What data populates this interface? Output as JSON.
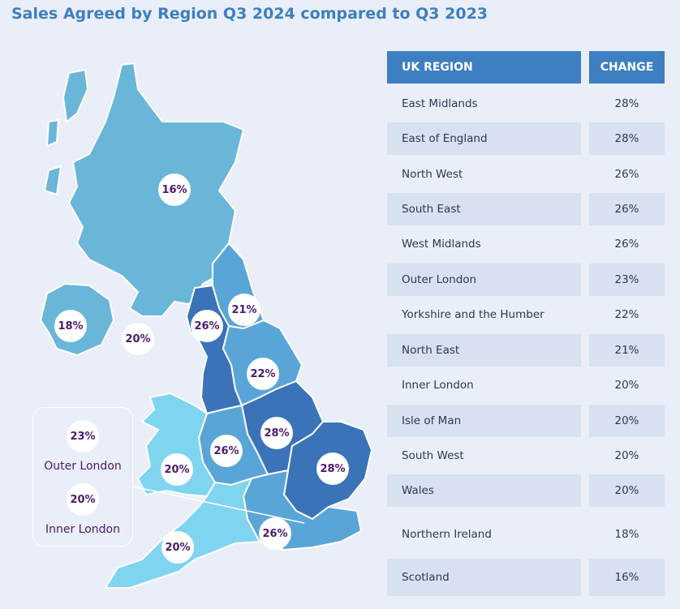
{
  "title": "Sales Agreed by Region Q3 2024 compared to Q3 2023",
  "table": {
    "headers": {
      "region": "UK REGION",
      "change": "CHANGE"
    },
    "rows": [
      {
        "region": "East Midlands",
        "change": "28%"
      },
      {
        "region": "East of England",
        "change": "28%"
      },
      {
        "region": "North West",
        "change": "26%"
      },
      {
        "region": "South East",
        "change": "26%"
      },
      {
        "region": "West Midlands",
        "change": "26%"
      },
      {
        "region": "Outer London",
        "change": "23%"
      },
      {
        "region": "Yorkshire and the Humber",
        "change": "22%"
      },
      {
        "region": "North East",
        "change": "21%"
      },
      {
        "region": "Inner London",
        "change": "20%"
      },
      {
        "region": "Isle of Man",
        "change": "20%"
      },
      {
        "region": "South West",
        "change": "20%"
      },
      {
        "region": "Wales",
        "change": "20%"
      },
      {
        "region": "Northern Ireland",
        "change": "18%"
      },
      {
        "region": "Scotland",
        "change": "16%"
      }
    ]
  },
  "map_labels": {
    "scotland": "16%",
    "northern_ireland": "18%",
    "isle_of_man": "20%",
    "north_west": "26%",
    "north_east": "21%",
    "yorkshire": "22%",
    "east_midlands": "28%",
    "west_midlands": "26%",
    "wales": "20%",
    "east_of_england": "28%",
    "south_east": "26%",
    "south_west": "20%"
  },
  "london_inset": {
    "outer_value": "23%",
    "outer_label": "Outer London",
    "inner_value": "20%",
    "inner_label": "Inner London"
  },
  "colors": {
    "background": "#e9eef8",
    "title": "#3d7fc0",
    "header": "#3d7fc0",
    "row_alt": "#d8e1f0",
    "badge_text": "#4b1a6e",
    "scale_16_20": "#6ab6d8",
    "scale_20": "#7fd4f0",
    "scale_21_22": "#5aa5d8",
    "scale_26": "#3f82c5",
    "scale_28": "#3a73b8"
  }
}
